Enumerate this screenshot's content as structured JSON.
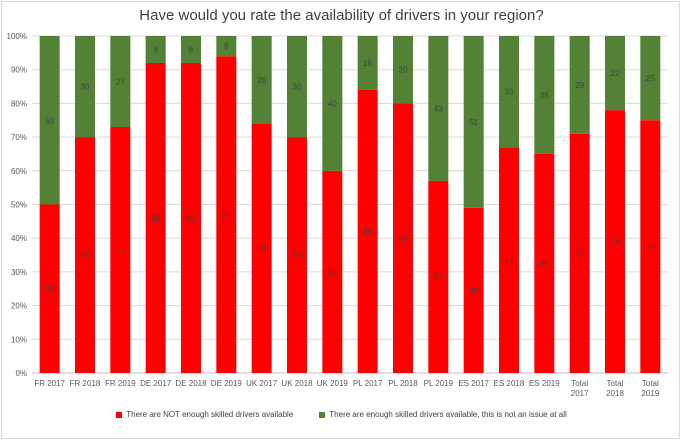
{
  "chart_data": {
    "type": "bar",
    "stacked": true,
    "title": "Have would you rate the availability of drivers in your region?",
    "categories": [
      [
        "FR 2017"
      ],
      [
        "FR 2018"
      ],
      [
        "FR 2019"
      ],
      [
        "DE 2017"
      ],
      [
        "DE 2018"
      ],
      [
        "DE 2019"
      ],
      [
        "UK 2017"
      ],
      [
        "UK 2018"
      ],
      [
        "UK 2019"
      ],
      [
        "PL 2017"
      ],
      [
        "PL 2018"
      ],
      [
        "PL 2019"
      ],
      [
        "ES 2017"
      ],
      [
        "ES 2018"
      ],
      [
        "ES 2019"
      ],
      [
        "Total",
        "2017"
      ],
      [
        "Total",
        "2018"
      ],
      [
        "Total",
        "2019"
      ]
    ],
    "y_ticks": [
      "0%",
      "10%",
      "20%",
      "30%",
      "40%",
      "50%",
      "60%",
      "70%",
      "80%",
      "90%",
      "100%"
    ],
    "ylim": [
      0,
      100
    ],
    "grid": true,
    "legend_position": "bottom",
    "series": [
      {
        "name": "There are NOT enough skilled drivers available",
        "color": "#ff0000",
        "values": [
          50,
          70,
          73,
          92,
          92,
          94,
          74,
          70,
          60,
          84,
          80,
          57,
          49,
          67,
          65,
          71,
          78,
          75
        ]
      },
      {
        "name": "There are enough skilled drivers available, this is not an issue at all",
        "color": "#538135",
        "values": [
          50,
          30,
          27,
          8,
          8,
          6,
          26,
          30,
          40,
          16,
          20,
          43,
          51,
          33,
          35,
          29,
          22,
          25
        ]
      }
    ]
  }
}
